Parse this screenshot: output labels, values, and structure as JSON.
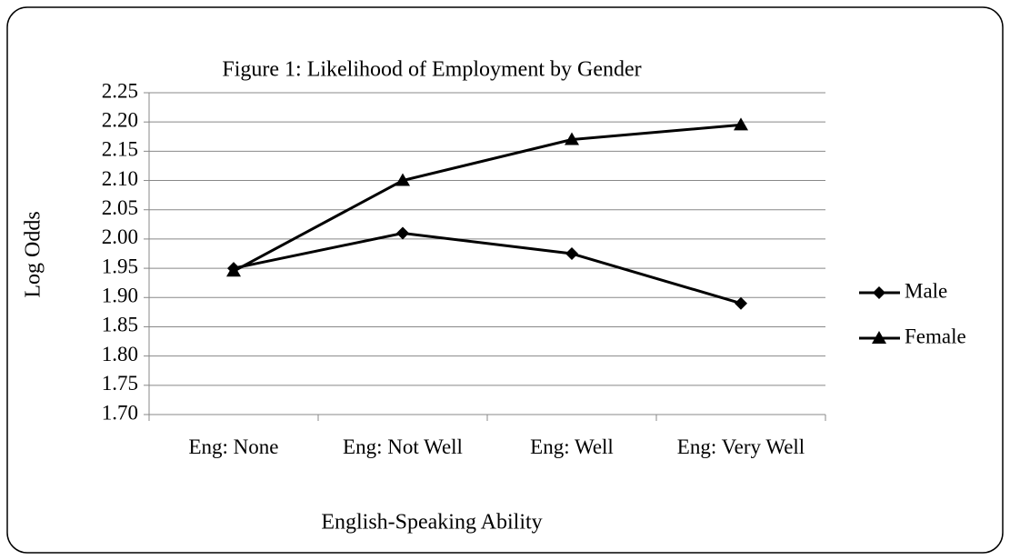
{
  "chart_data": {
    "type": "line",
    "title": "Figure 1: Likelihood of  Employment by Gender",
    "x_label": "English-Speaking Ability",
    "y_label": "Log Odds",
    "categories": [
      "Eng: None",
      "Eng: Not Well",
      "Eng: Well",
      "Eng: Very Well"
    ],
    "series": [
      {
        "name": "Male",
        "color": "#000000",
        "marker": "diamond",
        "values": [
          1.95,
          2.01,
          1.975,
          1.89
        ]
      },
      {
        "name": "Female",
        "color": "#000000",
        "marker": "triangle",
        "values": [
          1.945,
          2.1,
          2.17,
          2.195
        ]
      }
    ],
    "ylim": [
      1.7,
      2.25
    ],
    "yticks": [
      {
        "value": 1.7,
        "label": "1.70"
      },
      1.75,
      {
        "value": 1.8,
        "label": "1.80"
      },
      1.85,
      {
        "value": 1.9,
        "label": "1.90"
      },
      1.95,
      {
        "value": 2.0,
        "label": "2.00"
      },
      2.05,
      {
        "value": 2.1,
        "label": "2.10"
      },
      2.15,
      {
        "value": 2.2,
        "label": "2.20"
      },
      2.25
    ],
    "grid": true,
    "legend": "right"
  }
}
